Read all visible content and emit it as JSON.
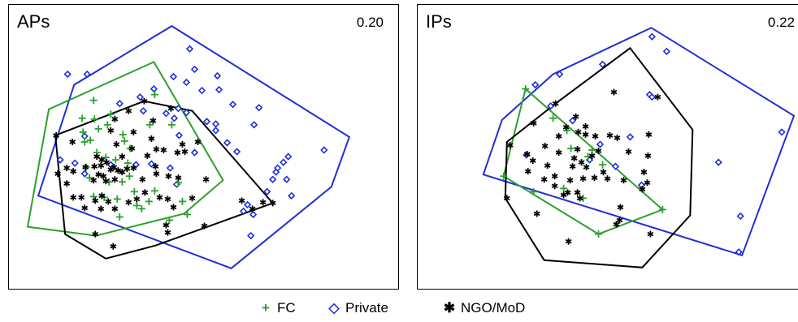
{
  "colors": {
    "FC": "#2ca02c",
    "Private": "#1f2fd6",
    "NGO": "#000000"
  },
  "legend": [
    {
      "name": "FC",
      "symbol": "+",
      "color": "#2ca02c",
      "icon": "plus-icon"
    },
    {
      "name": "Private",
      "symbol": "◇",
      "color": "#1f2fd6",
      "icon": "diamond-icon"
    },
    {
      "name": "NGO/MoD",
      "symbol": "✱",
      "color": "#000000",
      "icon": "asterisk-icon"
    }
  ],
  "chart_data": [
    {
      "type": "scatter",
      "title": "APs",
      "annotation": "0.20",
      "xlim": [
        0,
        480
      ],
      "ylim": [
        350,
        0
      ],
      "hulls": {
        "Private": [
          [
            200,
            26
          ],
          [
            418,
            162
          ],
          [
            396,
            223
          ],
          [
            273,
            323
          ],
          [
            36,
            234
          ],
          [
            80,
            98
          ]
        ],
        "FC": [
          [
            178,
            70
          ],
          [
            263,
            215
          ],
          [
            215,
            256
          ],
          [
            107,
            283
          ],
          [
            23,
            272
          ],
          [
            49,
            128
          ]
        ],
        "NGO": [
          [
            166,
            118
          ],
          [
            225,
            130
          ],
          [
            324,
            243
          ],
          [
            180,
            295
          ],
          [
            119,
            311
          ],
          [
            69,
            281
          ],
          [
            57,
            160
          ]
        ]
      },
      "series": [
        {
          "name": "Private",
          "marker": "diamond",
          "points": [
            [
              222,
              54
            ],
            [
              228,
              79
            ],
            [
              256,
              87
            ],
            [
              202,
              88
            ],
            [
              218,
              95
            ],
            [
              178,
              103
            ],
            [
              237,
              105
            ],
            [
              258,
              104
            ],
            [
              161,
              113
            ],
            [
              136,
              121
            ],
            [
              208,
              127
            ],
            [
              275,
              122
            ],
            [
              307,
              126
            ],
            [
              165,
              130
            ],
            [
              193,
              133
            ],
            [
              203,
              139
            ],
            [
              218,
              132
            ],
            [
              243,
              143
            ],
            [
              254,
              146
            ],
            [
              301,
              147
            ],
            [
              254,
              154
            ],
            [
              209,
              160
            ],
            [
              268,
              169
            ],
            [
              93,
              161
            ],
            [
              280,
              180
            ],
            [
              387,
              178
            ],
            [
              228,
              181
            ],
            [
              343,
              186
            ],
            [
              337,
              193
            ],
            [
              175,
              195
            ],
            [
              63,
              190
            ],
            [
              81,
              194
            ],
            [
              330,
              200
            ],
            [
              198,
              200
            ],
            [
              93,
              207
            ],
            [
              125,
              196
            ],
            [
              156,
              196
            ],
            [
              328,
              205
            ],
            [
              324,
              214
            ],
            [
              341,
              214
            ],
            [
              206,
              220
            ],
            [
              317,
              229
            ],
            [
              347,
              234
            ],
            [
              293,
              245
            ],
            [
              288,
              253
            ],
            [
              300,
              257
            ],
            [
              297,
              283
            ],
            [
              72,
              85
            ],
            [
              96,
              85
            ]
          ]
        },
        {
          "name": "FC",
          "marker": "plus",
          "points": [
            [
              104,
              117
            ],
            [
              90,
              139
            ],
            [
              105,
              140
            ],
            [
              121,
              147
            ],
            [
              91,
              156
            ],
            [
              110,
              152
            ],
            [
              140,
              159
            ],
            [
              173,
              147
            ],
            [
              200,
              147
            ],
            [
              125,
              134
            ],
            [
              179,
              110
            ],
            [
              100,
              166
            ],
            [
              93,
              168
            ],
            [
              142,
              167
            ],
            [
              149,
              176
            ],
            [
              108,
              181
            ],
            [
              119,
              187
            ],
            [
              131,
              190
            ],
            [
              95,
              199
            ],
            [
              99,
              212
            ],
            [
              123,
              217
            ],
            [
              146,
              194
            ],
            [
              148,
              210
            ],
            [
              139,
              217
            ],
            [
              154,
              229
            ],
            [
              104,
              235
            ],
            [
              117,
              236
            ],
            [
              133,
              238
            ],
            [
              172,
              241
            ],
            [
              163,
              250
            ],
            [
              136,
              260
            ],
            [
              157,
              246
            ],
            [
              179,
              228
            ],
            [
              208,
              218
            ],
            [
              219,
              257
            ],
            [
              197,
              264
            ],
            [
              213,
              241
            ]
          ]
        },
        {
          "name": "NGO",
          "marker": "asterisk",
          "points": [
            [
              166,
              118
            ],
            [
              147,
              130
            ],
            [
              130,
              140
            ],
            [
              177,
              142
            ],
            [
              199,
              127
            ],
            [
              125,
              154
            ],
            [
              153,
              156
            ],
            [
              175,
              164
            ],
            [
              213,
              171
            ],
            [
              232,
              168
            ],
            [
              78,
              168
            ],
            [
              58,
              160
            ],
            [
              132,
              171
            ],
            [
              151,
              176
            ],
            [
              139,
              186
            ],
            [
              170,
              185
            ],
            [
              181,
              177
            ],
            [
              190,
              178
            ],
            [
              207,
              181
            ],
            [
              216,
              180
            ],
            [
              108,
              186
            ],
            [
              114,
              190
            ],
            [
              113,
              197
            ],
            [
              120,
              193
            ],
            [
              129,
              199
            ],
            [
              134,
              203
            ],
            [
              145,
              201
            ],
            [
              153,
              200
            ],
            [
              180,
              198
            ],
            [
              94,
              199
            ],
            [
              105,
              198
            ],
            [
              110,
              208
            ],
            [
              116,
              210
            ],
            [
              119,
              216
            ],
            [
              125,
              202
            ],
            [
              130,
              214
            ],
            [
              139,
              205
            ],
            [
              164,
              214
            ],
            [
              181,
              207
            ],
            [
              196,
              210
            ],
            [
              208,
              212
            ],
            [
              242,
              214
            ],
            [
              60,
              207
            ],
            [
              71,
              200
            ],
            [
              79,
              204
            ],
            [
              104,
              215
            ],
            [
              71,
              219
            ],
            [
              79,
              236
            ],
            [
              89,
              236
            ],
            [
              106,
              240
            ],
            [
              114,
              234
            ],
            [
              122,
              241
            ],
            [
              130,
              250
            ],
            [
              147,
              242
            ],
            [
              157,
              238
            ],
            [
              167,
              230
            ],
            [
              185,
              236
            ],
            [
              195,
              238
            ],
            [
              202,
              248
            ],
            [
              113,
              250
            ],
            [
              93,
              249
            ],
            [
              193,
              270
            ],
            [
              195,
              279
            ],
            [
              225,
              237
            ],
            [
              286,
              240
            ],
            [
              299,
              250
            ],
            [
              312,
              242
            ],
            [
              324,
              243
            ],
            [
              240,
              271
            ],
            [
              128,
              296
            ],
            [
              106,
              281
            ]
          ]
        }
      ]
    },
    {
      "type": "scatter",
      "title": "IPs",
      "annotation": "0.22",
      "xlim": [
        0,
        470
      ],
      "ylim": [
        350,
        0
      ],
      "hulls": {
        "Private": [
          [
            288,
            28
          ],
          [
            464,
            136
          ],
          [
            400,
            307
          ],
          [
            81,
            208
          ],
          [
            104,
            141
          ],
          [
            167,
            85
          ]
        ],
        "FC": [
          [
            133,
            103
          ],
          [
            302,
            251
          ],
          [
            223,
            281
          ],
          [
            106,
            210
          ]
        ],
        "NGO": [
          [
            262,
            53
          ],
          [
            339,
            153
          ],
          [
            336,
            258
          ],
          [
            277,
            322
          ],
          [
            156,
            313
          ],
          [
            108,
            237
          ],
          [
            110,
            168
          ],
          [
            170,
            121
          ]
        ]
      },
      "series": [
        {
          "name": "Private",
          "marker": "diamond",
          "points": [
            [
              289,
              39
            ],
            [
              307,
              57
            ],
            [
              228,
              73
            ],
            [
              175,
              85
            ],
            [
              145,
              98
            ],
            [
              286,
              110
            ],
            [
              289,
              113
            ],
            [
              164,
              124
            ],
            [
              191,
              142
            ],
            [
              449,
              156
            ],
            [
              225,
              171
            ],
            [
              262,
              162
            ],
            [
              134,
              184
            ],
            [
              212,
              190
            ],
            [
              244,
              198
            ],
            [
              371,
              193
            ],
            [
              276,
              221
            ],
            [
              398,
              259
            ],
            [
              396,
              303
            ]
          ]
        },
        {
          "name": "FC",
          "marker": "plus",
          "points": [
            [
              133,
              103
            ],
            [
              167,
              139
            ],
            [
              184,
              154
            ],
            [
              189,
              176
            ],
            [
              215,
              178
            ],
            [
              210,
              186
            ],
            [
              228,
              196
            ],
            [
              106,
              210
            ],
            [
              143,
              229
            ],
            [
              180,
              225
            ],
            [
              204,
              237
            ],
            [
              302,
              251
            ],
            [
              223,
              281
            ]
          ]
        },
        {
          "name": "NGO",
          "marker": "asterisk",
          "points": [
            [
              242,
              107
            ],
            [
              296,
              113
            ],
            [
              170,
              121
            ],
            [
              143,
              145
            ],
            [
              195,
              137
            ],
            [
              183,
              150
            ],
            [
              207,
              149
            ],
            [
              207,
              159
            ],
            [
              198,
              156
            ],
            [
              174,
              161
            ],
            [
              157,
              173
            ],
            [
              219,
              161
            ],
            [
              237,
              160
            ],
            [
              246,
              163
            ],
            [
              285,
              159
            ],
            [
              223,
              179
            ],
            [
              260,
              180
            ],
            [
              197,
              177
            ],
            [
              193,
              188
            ],
            [
              174,
              181
            ],
            [
              135,
              183
            ],
            [
              114,
              172
            ],
            [
              215,
              185
            ],
            [
              202,
              193
            ],
            [
              284,
              185
            ],
            [
              142,
              191
            ],
            [
              160,
              197
            ],
            [
              136,
              204
            ],
            [
              191,
              198
            ],
            [
              208,
              199
            ],
            [
              229,
              205
            ],
            [
              169,
              210
            ],
            [
              188,
              215
            ],
            [
              204,
              213
            ],
            [
              218,
              212
            ],
            [
              156,
              214
            ],
            [
              169,
              222
            ],
            [
              185,
              230
            ],
            [
              197,
              230
            ],
            [
              180,
              233
            ],
            [
              200,
              237
            ],
            [
              234,
              213
            ],
            [
              254,
              215
            ],
            [
              279,
              205
            ],
            [
              283,
              218
            ],
            [
              277,
              226
            ],
            [
              250,
              248
            ],
            [
              249,
              264
            ],
            [
              245,
              269
            ],
            [
              110,
              237
            ],
            [
              147,
              256
            ],
            [
              186,
              290
            ],
            [
              287,
              281
            ]
          ]
        }
      ]
    }
  ]
}
